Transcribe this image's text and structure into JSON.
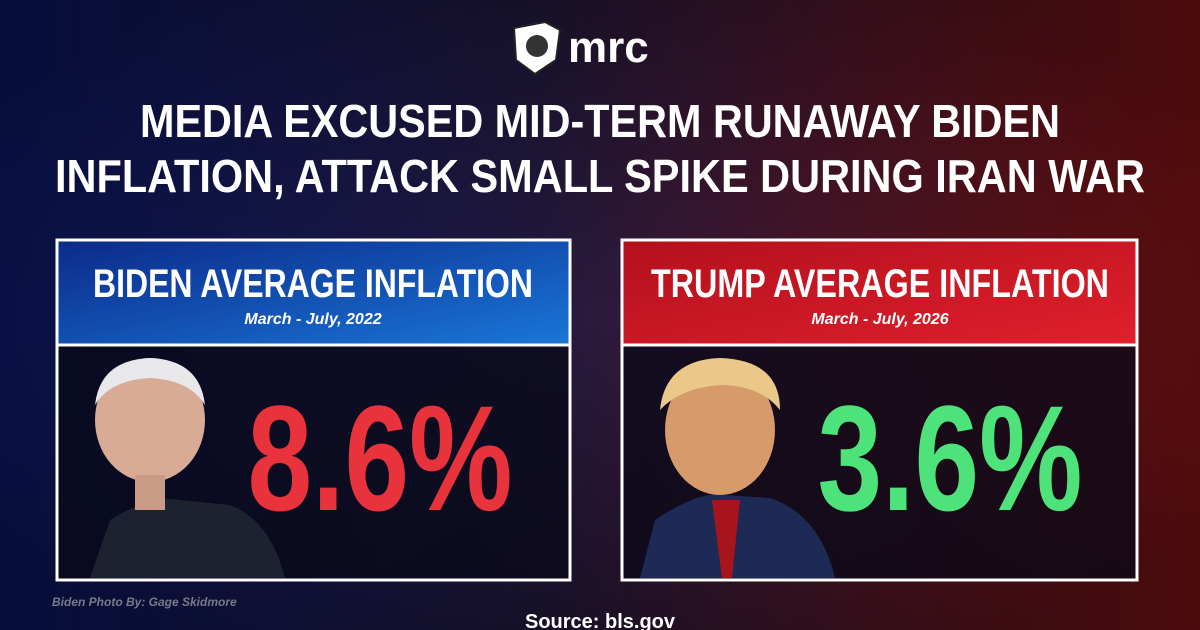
{
  "logo": "mrc",
  "title": [
    "MEDIA EXCUSED MID-TERM RUNAWAY BIDEN",
    "INFLATION, ATTACK SMALL SPIKE DURING IRAN WAR"
  ],
  "panels": [
    {
      "heading": "BIDEN AVERAGE INFLATION",
      "period": "March - July, 2022",
      "value": "8.6%"
    },
    {
      "heading": "TRUMP AVERAGE INFLATION",
      "period": "March - July, 2026",
      "value": "3.6%"
    }
  ],
  "photo_credit": "Biden Photo By: Gage Skidmore",
  "source": "Source: bls.gov"
}
